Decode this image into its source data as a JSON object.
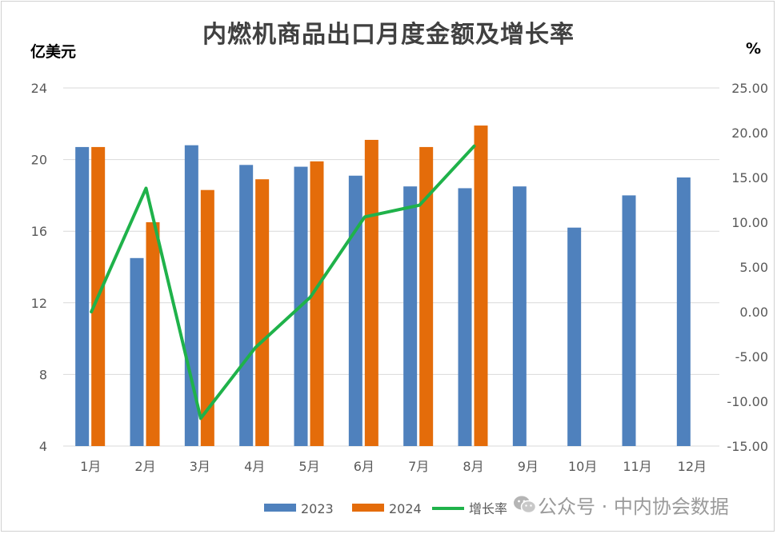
{
  "title": "内燃机商品出口月度金额及增长率",
  "unit_left": "亿美元",
  "unit_right": "%",
  "watermark": "公众号 · 中内协会数据",
  "colors": {
    "s2023": "#4f81bd",
    "s2024": "#e46c0a",
    "growth": "#1fb24a",
    "grid": "#d9d9d9",
    "axis_text": "#595959"
  },
  "chart_data": {
    "type": "bar",
    "categories": [
      "1月",
      "2月",
      "3月",
      "4月",
      "5月",
      "6月",
      "7月",
      "8月",
      "9月",
      "10月",
      "11月",
      "12月"
    ],
    "series": [
      {
        "name": "2023",
        "type": "bar",
        "axis": "left",
        "values": [
          20.7,
          14.5,
          20.8,
          19.7,
          19.6,
          19.1,
          18.5,
          18.4,
          18.5,
          16.2,
          18.0,
          19.0
        ]
      },
      {
        "name": "2024",
        "type": "bar",
        "axis": "left",
        "values": [
          20.7,
          16.5,
          18.3,
          18.9,
          19.9,
          21.1,
          20.7,
          21.9,
          null,
          null,
          null,
          null
        ]
      },
      {
        "name": "增长率",
        "type": "line",
        "axis": "right",
        "values": [
          0.0,
          13.8,
          -11.9,
          -4.0,
          1.6,
          10.6,
          11.9,
          18.5,
          null,
          null,
          null,
          null
        ]
      }
    ],
    "left_axis": {
      "ylim": [
        4,
        24
      ],
      "ticks": [
        "4",
        "8",
        "12",
        "16",
        "20",
        "24"
      ]
    },
    "right_axis": {
      "ylim": [
        -15,
        25
      ],
      "ticks": [
        "-15.00",
        "-10.00",
        "-5.00",
        "0.00",
        "5.00",
        "10.00",
        "15.00",
        "20.00",
        "25.00"
      ]
    },
    "grid": true,
    "legend_position": "bottom"
  }
}
